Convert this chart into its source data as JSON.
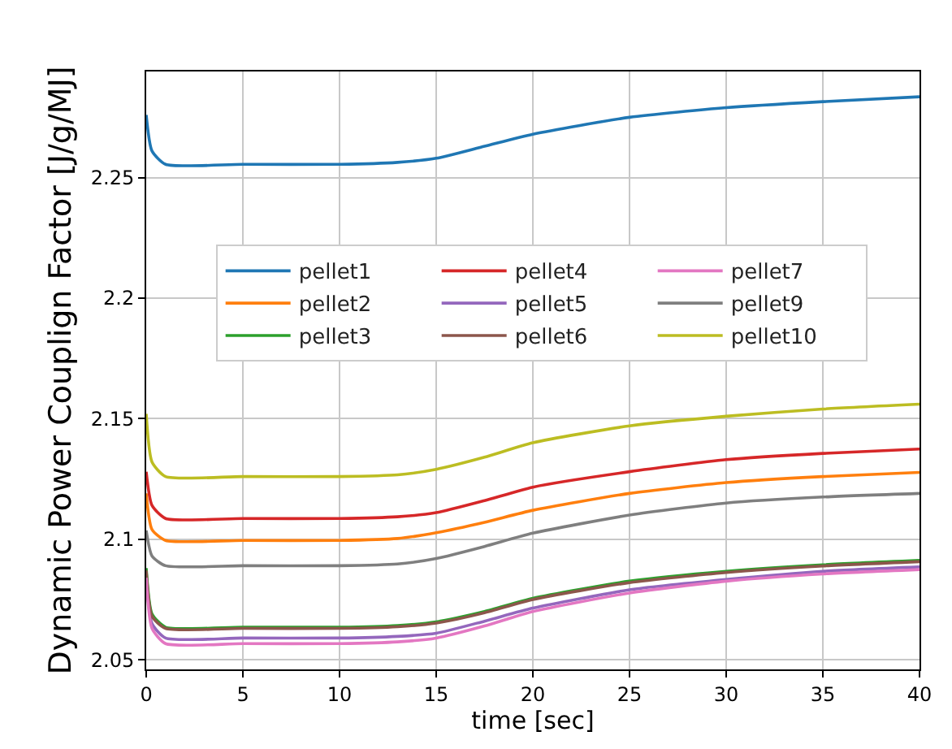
{
  "chart_data": {
    "type": "line",
    "xlabel": "time [sec]",
    "ylabel": "Dynamic Power Couplign Factor [J/g/MJ]",
    "x": [
      0,
      0.3,
      1,
      5,
      10,
      13,
      15,
      17.5,
      20,
      25,
      30,
      35,
      40
    ],
    "xlim": [
      0,
      40
    ],
    "xticks": [
      0,
      5,
      10,
      15,
      20,
      25,
      30,
      35,
      40
    ],
    "ylim": [
      2.046,
      2.294
    ],
    "yticks": [
      2.05,
      2.1,
      2.15,
      2.2,
      2.25
    ],
    "grid": true,
    "legend": "top",
    "line_style": "solid",
    "marker": "none",
    "series": [
      {
        "name": "pellet1",
        "color": "#1f77b4",
        "values": [
          2.276,
          2.261,
          2.2555,
          2.2555,
          2.2555,
          2.2563,
          2.258,
          2.263,
          2.268,
          2.275,
          2.279,
          2.2815,
          2.2835
        ]
      },
      {
        "name": "pellet2",
        "color": "#ff7f0e",
        "values": [
          2.119,
          2.104,
          2.0995,
          2.0995,
          2.0995,
          2.1003,
          2.1027,
          2.107,
          2.112,
          2.119,
          2.1235,
          2.126,
          2.1277
        ]
      },
      {
        "name": "pellet3",
        "color": "#2ca02c",
        "values": [
          2.088,
          2.069,
          2.0635,
          2.0635,
          2.0635,
          2.0642,
          2.0657,
          2.07,
          2.0755,
          2.0826,
          2.0867,
          2.0894,
          2.0912
        ]
      },
      {
        "name": "pellet4",
        "color": "#d62728",
        "values": [
          2.128,
          2.114,
          2.1086,
          2.1086,
          2.1086,
          2.1093,
          2.111,
          2.116,
          2.1216,
          2.128,
          2.133,
          2.1356,
          2.1374
        ]
      },
      {
        "name": "pellet5",
        "color": "#9467bd",
        "values": [
          2.085,
          2.065,
          2.059,
          2.059,
          2.059,
          2.0597,
          2.061,
          2.066,
          2.0714,
          2.079,
          2.0833,
          2.0867,
          2.0885
        ]
      },
      {
        "name": "pellet6",
        "color": "#8c564b",
        "values": [
          2.087,
          2.068,
          2.063,
          2.063,
          2.063,
          2.0637,
          2.0652,
          2.0695,
          2.075,
          2.082,
          2.0862,
          2.0889,
          2.0907
        ]
      },
      {
        "name": "pellet7",
        "color": "#e377c2",
        "values": [
          2.084,
          2.063,
          2.0567,
          2.0567,
          2.0567,
          2.0574,
          2.059,
          2.064,
          2.07,
          2.0777,
          2.0826,
          2.0856,
          2.0874
        ]
      },
      {
        "name": "pellet9",
        "color": "#7f7f7f",
        "values": [
          2.1036,
          2.093,
          2.089,
          2.089,
          2.089,
          2.0897,
          2.092,
          2.097,
          2.1025,
          2.11,
          2.115,
          2.1175,
          2.119
        ]
      },
      {
        "name": "pellet10",
        "color": "#bcbd22",
        "values": [
          2.152,
          2.132,
          2.126,
          2.126,
          2.126,
          2.1267,
          2.129,
          2.134,
          2.14,
          2.147,
          2.151,
          2.154,
          2.156
        ]
      }
    ]
  }
}
